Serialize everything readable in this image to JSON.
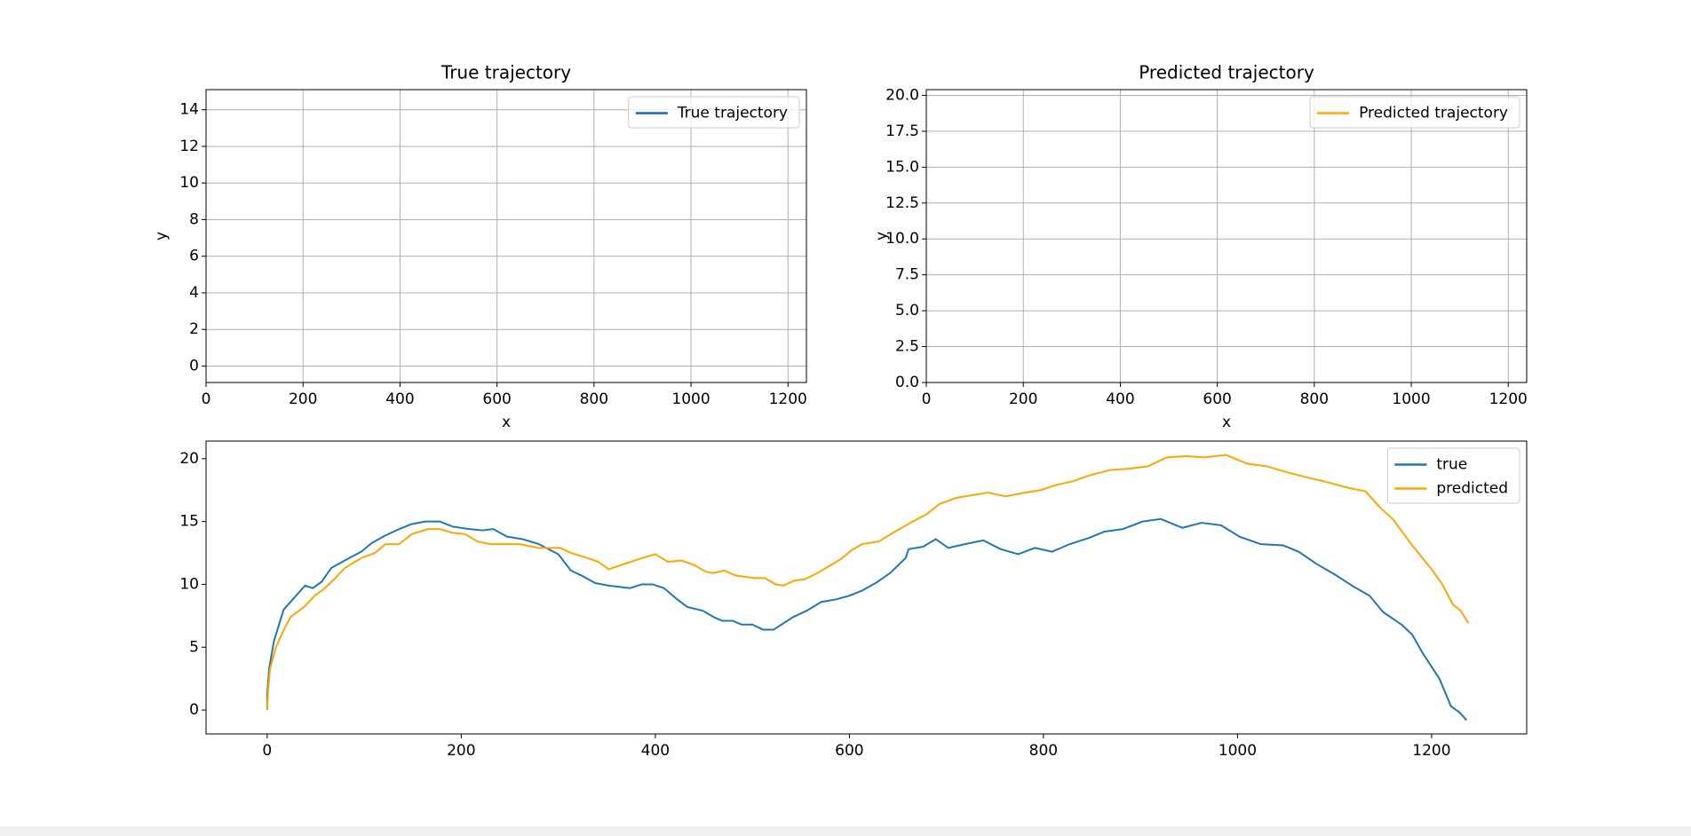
{
  "chart_data": [
    {
      "type": "line",
      "title": "True trajectory",
      "xlabel": "x",
      "ylabel": "y",
      "xlim": [
        0,
        1238
      ],
      "ylim": [
        -0.9,
        15.1
      ],
      "xticks": [
        0,
        200,
        400,
        600,
        800,
        1000,
        1200
      ],
      "yticks": [
        0,
        2,
        4,
        6,
        8,
        10,
        12,
        14
      ],
      "grid": true,
      "legend": "upper right",
      "series": [
        {
          "name": "True trajectory",
          "color": "#1565c0"
        }
      ]
    },
    {
      "type": "line",
      "title": "Predicted trajectory",
      "xlabel": "x",
      "ylabel": "y",
      "xlim": [
        0,
        1238
      ],
      "ylim": [
        0,
        20.4
      ],
      "xticks": [
        0,
        200,
        400,
        600,
        800,
        1000,
        1200
      ],
      "yticks": [
        {
          "value": 0,
          "label": "0.0"
        },
        2.5,
        {
          "value": 5,
          "label": "5.0"
        },
        7.5,
        {
          "value": 10,
          "label": "10.0"
        },
        12.5,
        {
          "value": 15,
          "label": "15.0"
        },
        17.5,
        {
          "value": 20,
          "label": "20.0"
        }
      ],
      "grid": true,
      "legend": "upper right",
      "series": [
        {
          "name": "Predicted trajectory",
          "color": "#ffa500"
        }
      ]
    },
    {
      "type": "line",
      "xlim": [
        -63,
        1298
      ],
      "ylim": [
        -1.9,
        21.4
      ],
      "xticks": [
        0,
        200,
        400,
        600,
        800,
        1000,
        1200
      ],
      "yticks": [
        0,
        5,
        10,
        15,
        20
      ],
      "grid": false,
      "legend": "upper right",
      "series": [
        {
          "name": "true",
          "color": "#1f77b4",
          "x": [
            0,
            0,
            2,
            7,
            11,
            17,
            24,
            39,
            47,
            56,
            66,
            80,
            97,
            108,
            122,
            136,
            149,
            163,
            178,
            191,
            208,
            222,
            233,
            247,
            263,
            280,
            300,
            313,
            324,
            338,
            352,
            374,
            386,
            397,
            409,
            421,
            433,
            449,
            460,
            469,
            480,
            489,
            500,
            511,
            522,
            532,
            542,
            556,
            571,
            586,
            600,
            613,
            627,
            642,
            658,
            661,
            676,
            689,
            702,
            719,
            738,
            756,
            774,
            791,
            809,
            827,
            847,
            863,
            882,
            902,
            921,
            943,
            963,
            983,
            1002,
            1024,
            1047,
            1063,
            1082,
            1102,
            1120,
            1136,
            1150,
            1169,
            1180,
            1191,
            1208,
            1220,
            1229,
            1236
          ],
          "values": [
            0,
            1.2,
            3.3,
            5.5,
            6.5,
            8,
            8.6,
            9.9,
            9.7,
            10.2,
            11.3,
            11.9,
            12.6,
            13.3,
            13.9,
            14.4,
            14.8,
            15,
            15,
            14.6,
            14.4,
            14.3,
            14.4,
            13.8,
            13.6,
            13.2,
            12.4,
            11.1,
            10.7,
            10.1,
            9.9,
            9.7,
            10,
            10,
            9.7,
            8.9,
            8.2,
            7.9,
            7.4,
            7.1,
            7.1,
            6.8,
            6.8,
            6.4,
            6.4,
            6.9,
            7.4,
            7.9,
            8.6,
            8.8,
            9.1,
            9.5,
            10.1,
            10.9,
            12.1,
            12.8,
            13,
            13.6,
            12.9,
            13.2,
            13.5,
            12.8,
            12.4,
            12.9,
            12.6,
            13.2,
            13.7,
            14.2,
            14.4,
            15,
            15.2,
            14.5,
            14.9,
            14.7,
            13.8,
            13.2,
            13.1,
            12.6,
            11.6,
            10.7,
            9.8,
            9.1,
            7.8,
            6.8,
            6,
            4.5,
            2.5,
            0.3,
            -0.2,
            -0.8
          ]
        },
        {
          "name": "predicted",
          "color": "#ffa500",
          "x": [
            0,
            1,
            3,
            9,
            16,
            24,
            38,
            49,
            58,
            69,
            80,
            97,
            111,
            122,
            136,
            149,
            166,
            178,
            191,
            204,
            217,
            230,
            260,
            280,
            302,
            313,
            330,
            341,
            352,
            371,
            387,
            400,
            413,
            427,
            441,
            452,
            460,
            471,
            483,
            502,
            513,
            524,
            532,
            543,
            554,
            567,
            580,
            591,
            602,
            613,
            630,
            647,
            663,
            680,
            693,
            711,
            727,
            743,
            761,
            774,
            797,
            813,
            830,
            849,
            869,
            888,
            908,
            927,
            947,
            966,
            988,
            1010,
            1030,
            1052,
            1072,
            1089,
            1113,
            1132,
            1147,
            1160,
            1180,
            1200,
            1211,
            1222,
            1230,
            1238
          ],
          "values": [
            0,
            1.6,
            3.3,
            5,
            6.2,
            7.4,
            8.2,
            9.1,
            9.6,
            10.4,
            11.3,
            12.1,
            12.5,
            13.2,
            13.2,
            14,
            14.4,
            14.4,
            14.1,
            14,
            13.4,
            13.2,
            13.2,
            12.9,
            12.9,
            12.5,
            12.1,
            11.8,
            11.2,
            11.7,
            12.1,
            12.4,
            11.8,
            11.9,
            11.5,
            11,
            10.9,
            11.1,
            10.7,
            10.5,
            10.5,
            10,
            9.9,
            10.3,
            10.4,
            10.9,
            11.5,
            12,
            12.7,
            13.2,
            13.4,
            14.2,
            14.9,
            15.6,
            16.4,
            16.9,
            17.1,
            17.3,
            17,
            17.2,
            17.5,
            17.9,
            18.2,
            18.7,
            19.1,
            19.2,
            19.4,
            20.1,
            20.2,
            20.1,
            20.3,
            19.6,
            19.4,
            18.9,
            18.5,
            18.2,
            17.7,
            17.4,
            16.1,
            15.2,
            13.1,
            11.2,
            10,
            8.4,
            7.9,
            6.9
          ]
        }
      ]
    }
  ]
}
